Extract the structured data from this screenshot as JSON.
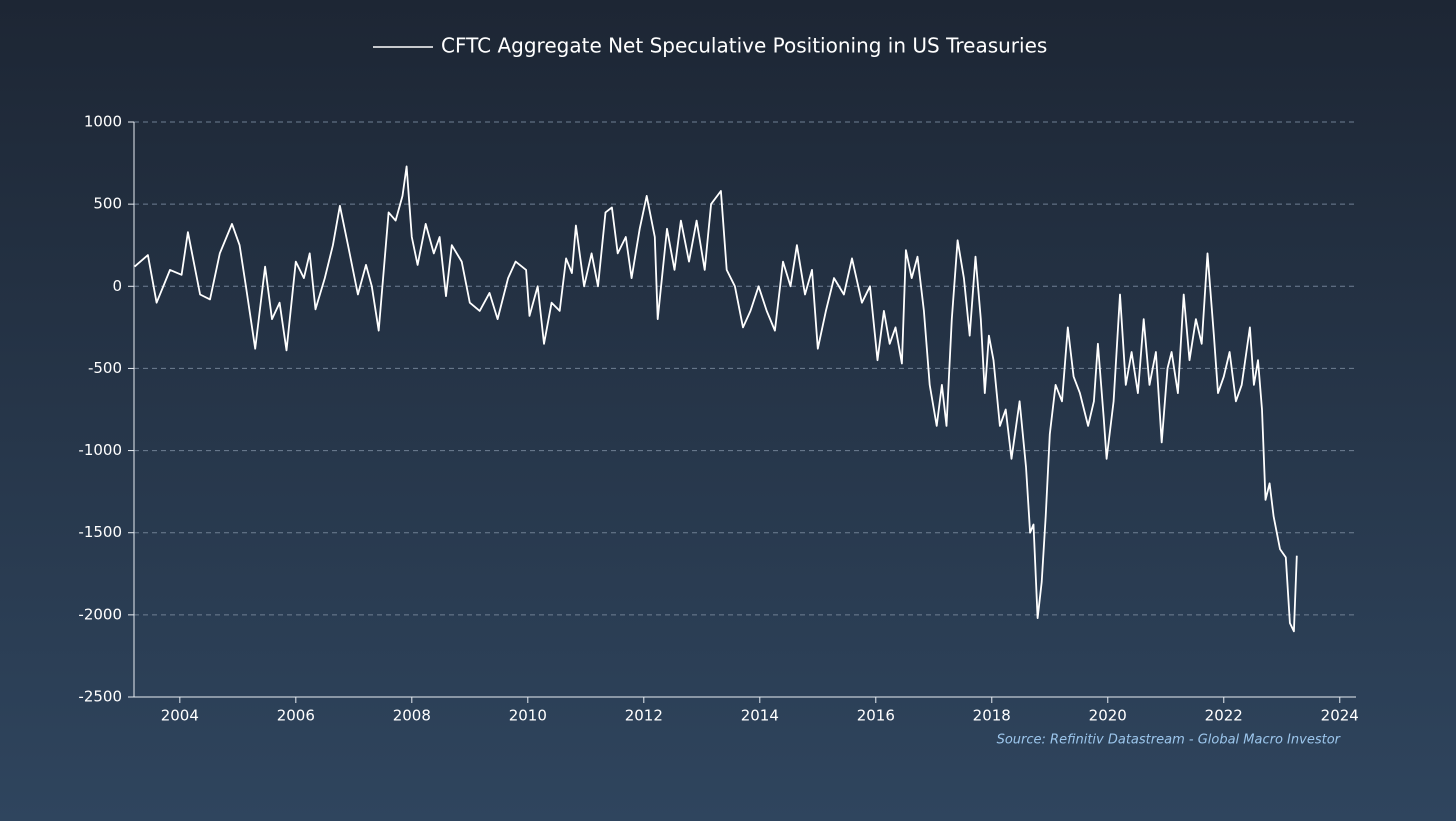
{
  "chart_data": {
    "type": "line",
    "source": "Source: Refinitiv Datastream - Global Macro Investor",
    "x": [
      2003.22,
      2003.45,
      2003.6,
      2003.83,
      2004.03,
      2004.14,
      2004.35,
      2004.52,
      2004.69,
      2004.9,
      2005.03,
      2005.14,
      2005.3,
      2005.47,
      2005.59,
      2005.72,
      2005.84,
      2006.0,
      2006.14,
      2006.24,
      2006.34,
      2006.5,
      2006.64,
      2006.76,
      2006.9,
      2007.07,
      2007.21,
      2007.31,
      2007.43,
      2007.6,
      2007.72,
      2007.84,
      2007.91,
      2008.0,
      2008.1,
      2008.24,
      2008.38,
      2008.48,
      2008.59,
      2008.69,
      2008.86,
      2009.0,
      2009.17,
      2009.34,
      2009.48,
      2009.66,
      2009.79,
      2009.97,
      2010.03,
      2010.17,
      2010.28,
      2010.41,
      2010.55,
      2010.66,
      2010.76,
      2010.83,
      2010.97,
      2011.1,
      2011.21,
      2011.34,
      2011.45,
      2011.55,
      2011.69,
      2011.79,
      2011.93,
      2012.05,
      2012.19,
      2012.24,
      2012.4,
      2012.53,
      2012.64,
      2012.78,
      2012.91,
      2013.05,
      2013.16,
      2013.33,
      2013.43,
      2013.57,
      2013.71,
      2013.84,
      2013.98,
      2014.12,
      2014.26,
      2014.4,
      2014.53,
      2014.64,
      2014.78,
      2014.9,
      2015.0,
      2015.14,
      2015.28,
      2015.45,
      2015.59,
      2015.76,
      2015.9,
      2016.03,
      2016.14,
      2016.24,
      2016.34,
      2016.45,
      2016.52,
      2016.62,
      2016.72,
      2016.83,
      2016.93,
      2017.05,
      2017.14,
      2017.22,
      2017.31,
      2017.41,
      2017.52,
      2017.62,
      2017.72,
      2017.81,
      2017.88,
      2017.95,
      2018.03,
      2018.14,
      2018.24,
      2018.34,
      2018.48,
      2018.59,
      2018.66,
      2018.72,
      2018.79,
      2018.86,
      2018.93,
      2019.0,
      2019.1,
      2019.21,
      2019.31,
      2019.41,
      2019.52,
      2019.66,
      2019.76,
      2019.83,
      2019.93,
      2019.98,
      2020.1,
      2020.21,
      2020.31,
      2020.41,
      2020.52,
      2020.62,
      2020.72,
      2020.83,
      2020.93,
      2021.03,
      2021.1,
      2021.21,
      2021.31,
      2021.41,
      2021.52,
      2021.62,
      2021.72,
      2021.83,
      2021.9,
      2022.0,
      2022.1,
      2022.21,
      2022.31,
      2022.45,
      2022.52,
      2022.59,
      2022.66,
      2022.72,
      2022.79,
      2022.86,
      2022.97,
      2023.07,
      2023.14,
      2023.21,
      2023.26
    ],
    "series": [
      {
        "name": "CFTC Aggregate Net Speculative Positioning in US Treasuries",
        "color": "#ffffff",
        "values": [
          120,
          190,
          -100,
          100,
          70,
          330,
          -50,
          -80,
          200,
          380,
          250,
          0,
          -380,
          120,
          -200,
          -100,
          -390,
          150,
          50,
          200,
          -140,
          50,
          250,
          490,
          250,
          -50,
          130,
          0,
          -270,
          450,
          400,
          550,
          730,
          300,
          130,
          380,
          200,
          300,
          -60,
          250,
          150,
          -100,
          -150,
          -40,
          -200,
          50,
          150,
          100,
          -180,
          0,
          -350,
          -100,
          -150,
          170,
          80,
          370,
          0,
          200,
          0,
          450,
          480,
          200,
          300,
          50,
          350,
          550,
          300,
          -200,
          350,
          100,
          400,
          150,
          400,
          100,
          500,
          580,
          100,
          0,
          -250,
          -150,
          0,
          -150,
          -270,
          150,
          0,
          250,
          -50,
          100,
          -380,
          -150,
          50,
          -50,
          170,
          -100,
          0,
          -450,
          -150,
          -350,
          -250,
          -470,
          220,
          50,
          180,
          -150,
          -600,
          -850,
          -600,
          -850,
          -200,
          280,
          50,
          -300,
          180,
          -200,
          -650,
          -300,
          -450,
          -850,
          -750,
          -1050,
          -700,
          -1100,
          -1500,
          -1450,
          -2020,
          -1800,
          -1400,
          -900,
          -600,
          -700,
          -250,
          -550,
          -650,
          -850,
          -700,
          -350,
          -800,
          -1050,
          -700,
          -50,
          -600,
          -400,
          -650,
          -200,
          -600,
          -400,
          -950,
          -500,
          -400,
          -650,
          -50,
          -450,
          -200,
          -350,
          200,
          -300,
          -650,
          -550,
          -400,
          -700,
          -600,
          -250,
          -600,
          -450,
          -750,
          -1300,
          -1200,
          -1400,
          -1600,
          -1650,
          -2050,
          -2100,
          -1640
        ]
      }
    ],
    "xlim": [
      2003.21,
      2024.28
    ],
    "xticks": [
      2004,
      2006,
      2008,
      2010,
      2012,
      2014,
      2016,
      2018,
      2020,
      2022,
      2024
    ],
    "ylim": [
      -2500,
      1000
    ],
    "yticks": [
      -2500,
      -2000,
      -1500,
      -1000,
      -500,
      0,
      500,
      1000
    ],
    "grid": true
  }
}
